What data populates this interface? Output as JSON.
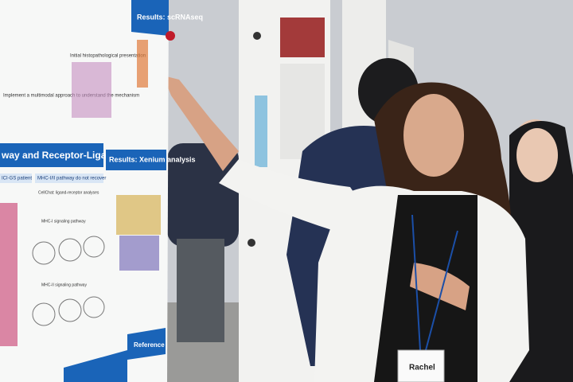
{
  "poster": {
    "header_top": "Results: scRNAseq",
    "header_left": "way and Receptor-Ligand analyses",
    "header_right": "Results: Xenium analysis",
    "subheaders": [
      "ICI-GS patient",
      "MHC-I/II pathway do not recover"
    ],
    "labels": [
      "Initial histopathological presentation",
      "CellChat: ligand-receptor analyses",
      "MHC-I signaling pathway",
      "MHC-II signaling pathway"
    ],
    "intro": "Implement a multimodal approach to understand the mechanism",
    "footer": "Reference"
  },
  "badge": {
    "name": "Rachel"
  }
}
